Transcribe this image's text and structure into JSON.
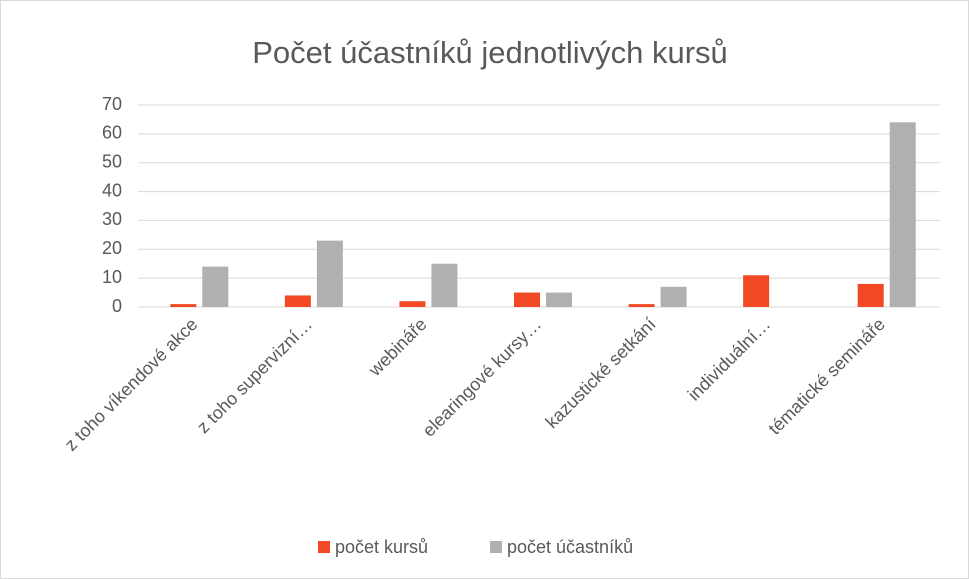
{
  "chart_data": {
    "type": "bar",
    "title": "Počet účastníků jednotlivých kursů",
    "categories": [
      "z toho víkendové akce",
      "z toho supervizní…",
      "webináře",
      "elearingové kursy…",
      "kazustické setkání",
      "individuální…",
      "tématické semináře"
    ],
    "series": [
      {
        "name": "počet kursů",
        "color": "#f04923",
        "values": [
          1,
          4,
          2,
          5,
          1,
          11,
          8
        ]
      },
      {
        "name": "počet účastníků",
        "color": "#b0b0b0",
        "values": [
          14,
          23,
          15,
          5,
          7,
          0,
          64
        ]
      }
    ],
    "ylim": [
      0,
      70
    ],
    "yticks": [
      0,
      10,
      20,
      30,
      40,
      50,
      60,
      70
    ],
    "grid": true,
    "legend": "bottom"
  }
}
